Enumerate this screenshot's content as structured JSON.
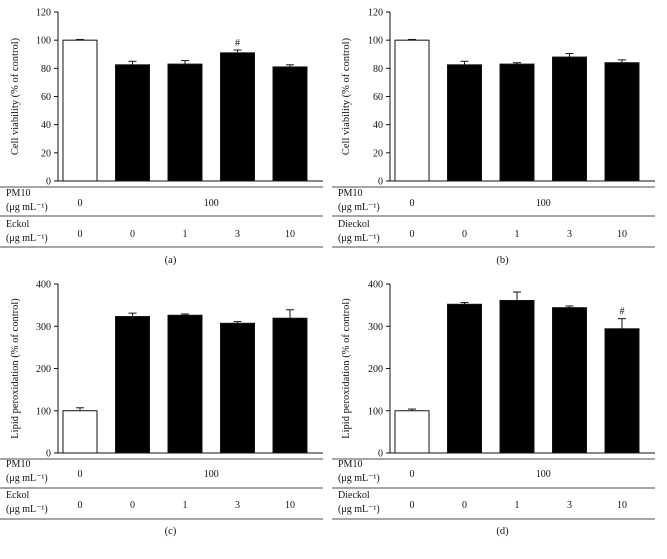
{
  "chart_data": [
    {
      "type": "bar",
      "panel_label": "(a)",
      "ylabel": "Cell viability (% of control)",
      "ylim": [
        0,
        120
      ],
      "yticks": [
        "0",
        "20",
        "40",
        "60",
        "80",
        "100",
        "120"
      ],
      "values": [
        100,
        82.5,
        83,
        91,
        81
      ],
      "errors": [
        0.5,
        2.5,
        2.5,
        2,
        1.5
      ],
      "bar_colors": [
        "#ffffff",
        "#000000",
        "#000000",
        "#000000",
        "#000000"
      ],
      "annotations": [
        "",
        "",
        "",
        "#",
        ""
      ],
      "rows": [
        {
          "label": "PM10",
          "unit": "(μg mL⁻¹)",
          "values": [
            "0",
            "100"
          ]
        },
        {
          "label": "Eckol",
          "unit": "(μg mL⁻¹)",
          "values": [
            "0",
            "0",
            "1",
            "3",
            "10"
          ]
        }
      ]
    },
    {
      "type": "bar",
      "panel_label": "(b)",
      "ylabel": "Cell viability (% of control)",
      "ylim": [
        0,
        120
      ],
      "yticks": [
        "0",
        "20",
        "40",
        "60",
        "80",
        "100",
        "120"
      ],
      "values": [
        100,
        82.5,
        83,
        88,
        84
      ],
      "errors": [
        0.5,
        2.5,
        1,
        2.5,
        2
      ],
      "bar_colors": [
        "#ffffff",
        "#000000",
        "#000000",
        "#000000",
        "#000000"
      ],
      "annotations": [
        "",
        "",
        "",
        "",
        ""
      ],
      "rows": [
        {
          "label": "PM10",
          "unit": "(μg mL⁻¹)",
          "values": [
            "0",
            "100"
          ]
        },
        {
          "label": "Dieckol",
          "unit": "(μg mL⁻¹)",
          "values": [
            "0",
            "0",
            "1",
            "3",
            "10"
          ]
        }
      ]
    },
    {
      "type": "bar",
      "panel_label": "(c)",
      "ylabel": "Lipid peroxidation (% of control)",
      "ylim": [
        0,
        400
      ],
      "yticks": [
        "0",
        "100",
        "200",
        "300",
        "400"
      ],
      "values": [
        100,
        323,
        326,
        307,
        319
      ],
      "errors": [
        7,
        8,
        3,
        4,
        20
      ],
      "bar_colors": [
        "#ffffff",
        "#000000",
        "#000000",
        "#000000",
        "#000000"
      ],
      "annotations": [
        "",
        "",
        "",
        "",
        ""
      ],
      "rows": [
        {
          "label": "PM10",
          "unit": "(μg mL⁻¹)",
          "values": [
            "0",
            "100"
          ]
        },
        {
          "label": "Eckol",
          "unit": "(μg mL⁻¹)",
          "values": [
            "0",
            "0",
            "1",
            "3",
            "10"
          ]
        }
      ]
    },
    {
      "type": "bar",
      "panel_label": "(d)",
      "ylabel": "Lipid peroxidation (% of control)",
      "ylim": [
        0,
        400
      ],
      "yticks": [
        "0",
        "100",
        "200",
        "300",
        "400"
      ],
      "values": [
        100,
        352,
        361,
        344,
        294
      ],
      "errors": [
        4,
        4,
        20,
        4,
        24
      ],
      "bar_colors": [
        "#ffffff",
        "#000000",
        "#000000",
        "#000000",
        "#000000"
      ],
      "annotations": [
        "",
        "",
        "",
        "",
        "#"
      ],
      "rows": [
        {
          "label": "PM10",
          "unit": "(μg mL⁻¹)",
          "values": [
            "0",
            "100"
          ]
        },
        {
          "label": "Dieckol",
          "unit": "(μg mL⁻¹)",
          "values": [
            "0",
            "0",
            "1",
            "3",
            "10"
          ]
        }
      ]
    }
  ]
}
